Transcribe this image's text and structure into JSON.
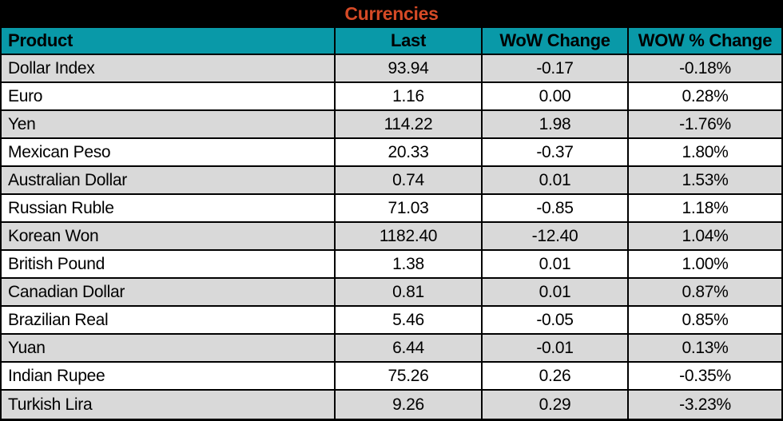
{
  "chart_data": {
    "type": "table",
    "title": "Currencies",
    "columns": [
      "Product",
      "Last",
      "WoW Change",
      "WOW % Change"
    ],
    "rows": [
      [
        "Dollar Index",
        93.94,
        -0.17,
        "-0.18%"
      ],
      [
        "Euro",
        1.16,
        0.0,
        "0.28%"
      ],
      [
        "Yen",
        114.22,
        1.98,
        "-1.76%"
      ],
      [
        "Mexican Peso",
        20.33,
        -0.37,
        "1.80%"
      ],
      [
        "Australian Dollar",
        0.74,
        0.01,
        "1.53%"
      ],
      [
        "Russian Ruble",
        71.03,
        -0.85,
        "1.18%"
      ],
      [
        "Korean Won",
        1182.4,
        -12.4,
        "1.04%"
      ],
      [
        "British Pound",
        1.38,
        0.01,
        "1.00%"
      ],
      [
        "Canadian Dollar",
        0.81,
        0.01,
        "0.87%"
      ],
      [
        "Brazilian Real",
        5.46,
        -0.05,
        "0.85%"
      ],
      [
        "Yuan",
        6.44,
        -0.01,
        "0.13%"
      ],
      [
        "Indian Rupee",
        75.26,
        0.26,
        "-0.35%"
      ],
      [
        "Turkish Lira",
        9.26,
        0.29,
        "-3.23%"
      ]
    ]
  },
  "table": {
    "title": "Currencies",
    "columns": [
      "Product",
      "Last",
      "WoW Change",
      "WOW % Change"
    ],
    "rows": [
      [
        "Dollar Index",
        "93.94",
        "-0.17",
        "-0.18%"
      ],
      [
        "Euro",
        "1.16",
        "0.00",
        "0.28%"
      ],
      [
        "Yen",
        "114.22",
        "1.98",
        "-1.76%"
      ],
      [
        "Mexican Peso",
        "20.33",
        "-0.37",
        "1.80%"
      ],
      [
        "Australian Dollar",
        "0.74",
        "0.01",
        "1.53%"
      ],
      [
        "Russian Ruble",
        "71.03",
        "-0.85",
        "1.18%"
      ],
      [
        "Korean Won",
        "1182.40",
        "-12.40",
        "1.04%"
      ],
      [
        "British Pound",
        "1.38",
        "0.01",
        "1.00%"
      ],
      [
        "Canadian Dollar",
        "0.81",
        "0.01",
        "0.87%"
      ],
      [
        "Brazilian Real",
        "5.46",
        "-0.05",
        "0.85%"
      ],
      [
        "Yuan",
        "6.44",
        "-0.01",
        "0.13%"
      ],
      [
        "Indian Rupee",
        "75.26",
        "0.26",
        "-0.35%"
      ],
      [
        "Turkish Lira",
        "9.26",
        "0.29",
        "-3.23%"
      ]
    ]
  },
  "colors": {
    "title_text": "#D54A26",
    "header_bg": "#0999A8",
    "row_alt_bg": "#D9D9D9",
    "row_bg": "#FFFFFF",
    "border": "#000000"
  }
}
